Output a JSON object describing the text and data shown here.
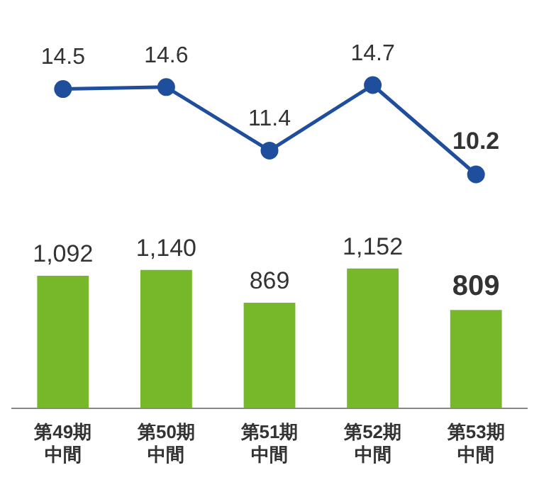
{
  "chart_data": [
    {
      "type": "line",
      "categories": [
        "第49期中間",
        "第50期中間",
        "第51期中間",
        "第52期中間",
        "第53期中間"
      ],
      "tick_labels": false,
      "marker": "circle",
      "grid": false,
      "series": [
        {
          "color": "#1f4e9c",
          "values": [
            14.5,
            14.6,
            11.4,
            14.7,
            10.2
          ],
          "value_labels": [
            "14.5",
            "14.6",
            "11.4",
            "14.7",
            "10.2"
          ]
        }
      ]
    },
    {
      "type": "bar",
      "categories": [
        "第49期中間",
        "第50期中間",
        "第51期中間",
        "第52期中間",
        "第53期中間"
      ],
      "grid": false,
      "series": [
        {
          "color": "#76b82a",
          "values": [
            1092,
            1140,
            869,
            1152,
            809
          ],
          "value_labels": [
            "1,092",
            "1,140",
            "869",
            "1,152",
            "809"
          ]
        }
      ]
    }
  ]
}
